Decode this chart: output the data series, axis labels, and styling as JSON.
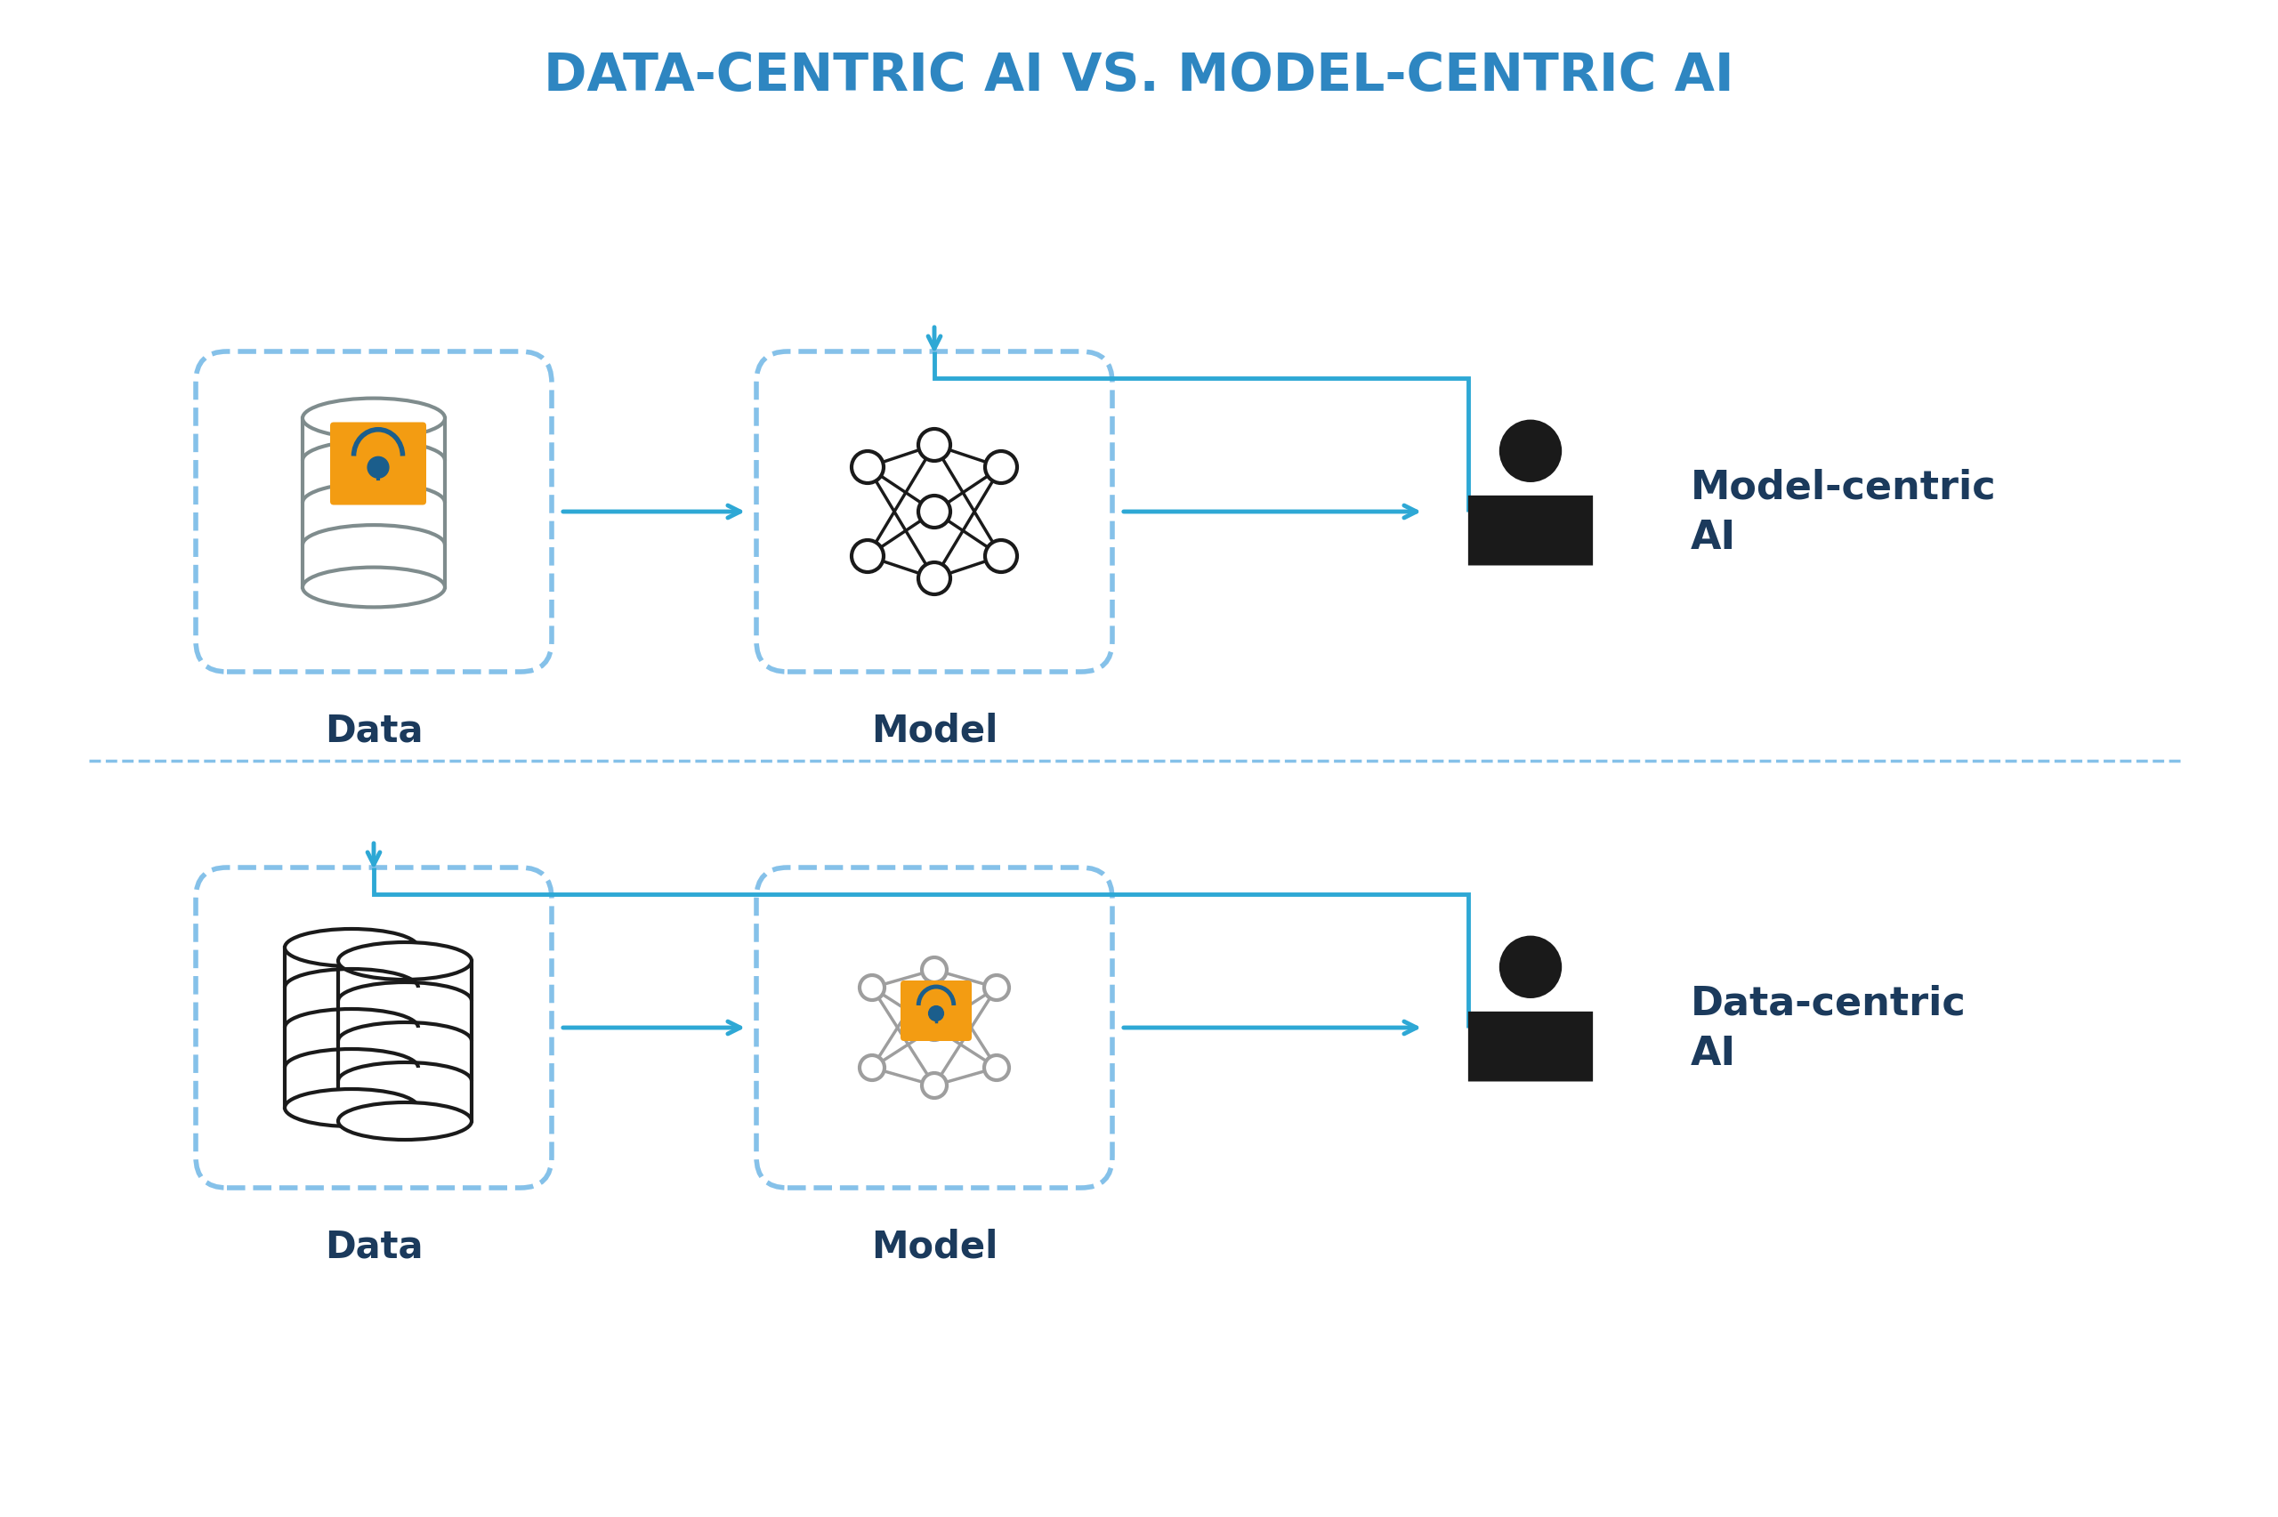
{
  "title": "DATA-CENTRIC AI VS. MODEL-CENTRIC AI",
  "title_color": "#2E86C1",
  "background_color": "#ffffff",
  "dashed_box_color": "#85C1E9",
  "arrow_color": "#2EA8D5",
  "label_color": "#1B3A5C",
  "model_centric_label": "Model-centric\nAI",
  "data_centric_label": "Data-centric\nAI",
  "data_label": "Data",
  "model_label": "Model"
}
